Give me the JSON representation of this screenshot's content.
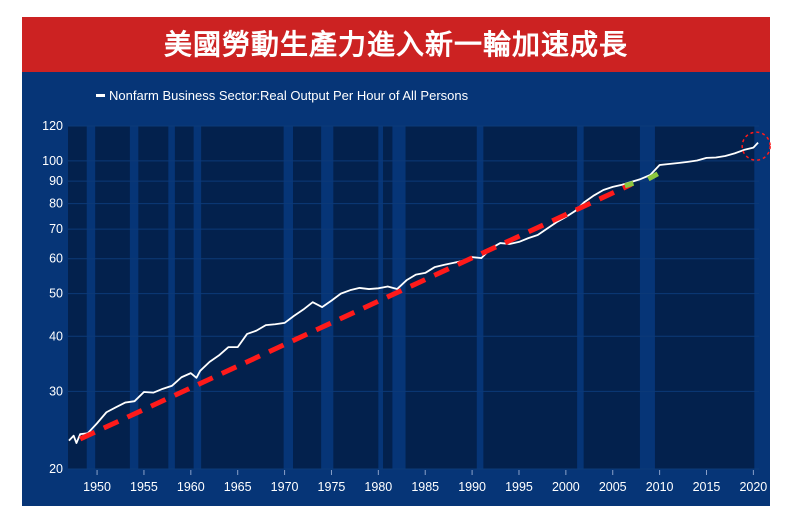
{
  "chart_data": {
    "type": "line",
    "title": "美國勞動生產力進入新一輪加速成長",
    "legend": [
      "Nonfarm Business Sector:Real Output Per Hour of All Persons"
    ],
    "legend_position": "top-left",
    "yscale": "log",
    "ylim": [
      20,
      120
    ],
    "xlim": [
      1946.9,
      2020.6
    ],
    "yticks": [
      20,
      30,
      40,
      50,
      60,
      70,
      80,
      90,
      100,
      120
    ],
    "xticks": [
      1950,
      1955,
      1960,
      1965,
      1970,
      1975,
      1980,
      1985,
      1990,
      1995,
      2000,
      2005,
      2010,
      2015,
      2020
    ],
    "series": [
      {
        "name": "Nonfarm Business Sector:Real Output Per Hour of All Persons",
        "x": [
          1947,
          1947.5,
          1947.8,
          1948.2,
          1949,
          1950,
          1951,
          1952,
          1953,
          1954,
          1955,
          1956,
          1957,
          1958,
          1959,
          1960,
          1960.6,
          1961,
          1962,
          1963,
          1964,
          1965,
          1966,
          1967,
          1968,
          1969,
          1970,
          1971,
          1972,
          1973,
          1974,
          1975,
          1976,
          1977,
          1978,
          1979,
          1980,
          1981,
          1982,
          1983,
          1984,
          1985,
          1986,
          1987,
          1988,
          1989,
          1990,
          1991,
          1992,
          1993,
          1994,
          1995,
          1996,
          1997,
          1998,
          1999,
          2000,
          2001,
          2002,
          2003,
          2004,
          2005,
          2006,
          2007,
          2008,
          2009,
          2010,
          2011,
          2012,
          2013,
          2014,
          2015,
          2016,
          2017,
          2018,
          2019,
          2020,
          2020.5
        ],
        "y": [
          23.2,
          23.8,
          22.9,
          24.0,
          24.1,
          25.4,
          26.9,
          27.6,
          28.3,
          28.5,
          29.9,
          29.8,
          30.4,
          30.9,
          32.3,
          33.0,
          32.2,
          33.4,
          35.0,
          36.2,
          37.8,
          37.8,
          40.5,
          41.2,
          42.4,
          42.6,
          42.9,
          44.5,
          46.0,
          47.8,
          46.6,
          48.2,
          50.0,
          50.9,
          51.5,
          51.2,
          51.4,
          51.9,
          51.2,
          53.6,
          55.2,
          55.7,
          57.4,
          58.1,
          58.7,
          59.3,
          60.5,
          60.2,
          63.3,
          65.1,
          64.8,
          65.5,
          66.8,
          67.9,
          70.2,
          72.6,
          74.6,
          77.0,
          80.7,
          83.5,
          85.9,
          87.3,
          88.3,
          89.6,
          91.0,
          92.9,
          97.9,
          98.4,
          98.9,
          99.5,
          100.2,
          101.6,
          101.8,
          102.6,
          104.0,
          105.9,
          107.2,
          110.0
        ]
      }
    ],
    "recessions": [
      [
        1948.9,
        1949.8
      ],
      [
        1953.5,
        1954.4
      ],
      [
        1957.6,
        1958.3
      ],
      [
        1960.3,
        1961.1
      ],
      [
        1969.9,
        1970.9
      ],
      [
        1973.9,
        1975.2
      ],
      [
        1980.0,
        1980.5
      ],
      [
        1981.5,
        1982.9
      ],
      [
        1990.5,
        1991.2
      ],
      [
        2001.2,
        2001.9
      ],
      [
        2007.9,
        2009.5
      ],
      [
        2020.1,
        2020.6
      ]
    ],
    "annotations": {
      "trend_line": {
        "color": "#ff1a1a",
        "x": [
          1948.2,
          2007.0
        ],
        "y": [
          23.4,
          88.5
        ]
      },
      "trend_line_green": {
        "color": "#8cc63f",
        "segments": [
          [
            [
              2006.3,
              87.8
            ],
            [
              2007.2,
              89.0
            ]
          ],
          [
            [
              2008.8,
              91.0
            ],
            [
              2009.8,
              93.5
            ]
          ]
        ]
      },
      "highlight_circle": {
        "color": "#ff1a1a",
        "x": 2020.3,
        "y": 108
      }
    }
  },
  "colors": {
    "banner": "#cc2222",
    "frame": "#063577",
    "panel": "#03214d",
    "line": "#ffffff"
  }
}
